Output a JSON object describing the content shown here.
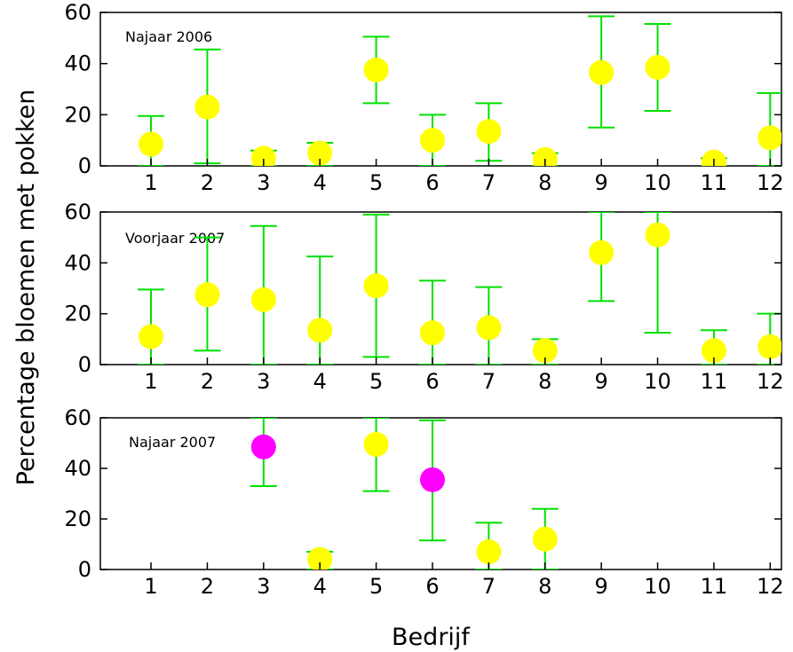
{
  "chart_data": {
    "type": "scatter",
    "ylabel": "Percentage bloemen met pokken",
    "xlabel": "Bedrijf",
    "x_ticks": [
      "1",
      "2",
      "3",
      "4",
      "5",
      "6",
      "7",
      "8",
      "9",
      "10",
      "11",
      "12"
    ],
    "y_ticks": [
      "0",
      "20",
      "40",
      "60"
    ],
    "ylim": [
      0,
      60
    ],
    "xlim": [
      0.1,
      12.2
    ],
    "grid": false,
    "colors": {
      "point": "#ffff00",
      "highlight": "#ff00ff",
      "errorbar": "#00e000",
      "axis": "#000000"
    },
    "panels": [
      {
        "label": "Najaar 2006",
        "points": [
          {
            "x": 1,
            "y": 8.5,
            "lo": 0,
            "hi": 19.5
          },
          {
            "x": 2,
            "y": 23,
            "lo": 1,
            "hi": 45.5
          },
          {
            "x": 3,
            "y": 3,
            "lo": 0,
            "hi": 6
          },
          {
            "x": 4,
            "y": 5,
            "lo": 0,
            "hi": 9
          },
          {
            "x": 5,
            "y": 37.5,
            "lo": 24.5,
            "hi": 50.5
          },
          {
            "x": 6,
            "y": 10,
            "lo": 0,
            "hi": 20
          },
          {
            "x": 7,
            "y": 13.5,
            "lo": 2,
            "hi": 24.5
          },
          {
            "x": 8,
            "y": 2.5,
            "lo": 0,
            "hi": 5
          },
          {
            "x": 9,
            "y": 36.5,
            "lo": 15,
            "hi": 58.5
          },
          {
            "x": 10,
            "y": 38.5,
            "lo": 21.5,
            "hi": 55.5
          },
          {
            "x": 11,
            "y": 1.5,
            "lo": 0,
            "hi": 3
          },
          {
            "x": 12,
            "y": 11,
            "lo": 0,
            "hi": 28.5
          }
        ]
      },
      {
        "label": "Voorjaar 2007",
        "points": [
          {
            "x": 1,
            "y": 11,
            "lo": 0,
            "hi": 29.5
          },
          {
            "x": 2,
            "y": 27.5,
            "lo": 5.5,
            "hi": 50
          },
          {
            "x": 3,
            "y": 25.5,
            "lo": 0,
            "hi": 54.5
          },
          {
            "x": 4,
            "y": 13.5,
            "lo": 0,
            "hi": 42.5
          },
          {
            "x": 5,
            "y": 31,
            "lo": 3,
            "hi": 59
          },
          {
            "x": 6,
            "y": 12.5,
            "lo": 0,
            "hi": 33
          },
          {
            "x": 7,
            "y": 14.5,
            "lo": 0,
            "hi": 30.5
          },
          {
            "x": 8,
            "y": 5.5,
            "lo": 0,
            "hi": 10
          },
          {
            "x": 9,
            "y": 44,
            "lo": 25,
            "hi": 60
          },
          {
            "x": 10,
            "y": 51,
            "lo": 12.5,
            "hi": 60
          },
          {
            "x": 11,
            "y": 5.5,
            "lo": 0,
            "hi": 13.5
          },
          {
            "x": 12,
            "y": 7,
            "lo": 0,
            "hi": 20
          }
        ]
      },
      {
        "label": "Najaar 2007",
        "points": [
          {
            "x": 3,
            "y": 48.5,
            "lo": 33,
            "hi": 60,
            "highlight": true
          },
          {
            "x": 4,
            "y": 4,
            "lo": 0,
            "hi": 7
          },
          {
            "x": 5,
            "y": 49.5,
            "lo": 31,
            "hi": 60
          },
          {
            "x": 6,
            "y": 35.5,
            "lo": 11.5,
            "hi": 59,
            "highlight": true
          },
          {
            "x": 7,
            "y": 7,
            "lo": 0,
            "hi": 18.5
          },
          {
            "x": 8,
            "y": 12,
            "lo": 0,
            "hi": 24
          }
        ]
      }
    ]
  }
}
